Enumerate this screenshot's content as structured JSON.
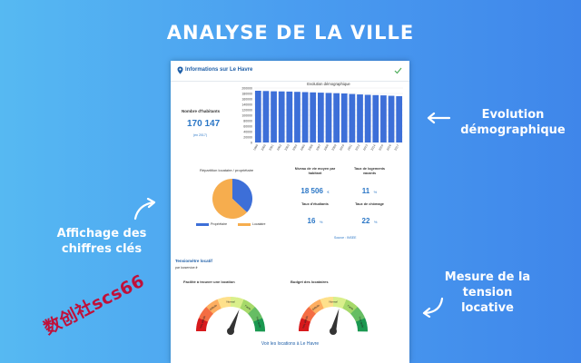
{
  "page": {
    "title": "ANALYSE DE LA VILLE"
  },
  "callouts": {
    "right_top": [
      "Evolution",
      "démographique"
    ],
    "left": [
      "Affichage des",
      "chiffres clés"
    ],
    "right_bottom": [
      "Mesure de la tension",
      "locative"
    ]
  },
  "card": {
    "header": {
      "label": "Informations sur Le Havre",
      "icon": "location-pin-icon",
      "check_icon": "check-icon"
    },
    "population": {
      "label": "Nombre d'habitants",
      "value": "170 147",
      "note": "(en 2017)"
    },
    "footer_link": "Voir les locations à Le Havre",
    "source": "Source : INSEE"
  },
  "chart_data": {
    "type": "bar",
    "title": "Evolution démographique",
    "categories": [
      "1999",
      "2000",
      "2001",
      "2002",
      "2003",
      "2004",
      "2005",
      "2006",
      "2007",
      "2008",
      "2009",
      "2010",
      "2011",
      "2012",
      "2013",
      "2014",
      "2015",
      "2016",
      "2017"
    ],
    "values": [
      190000,
      189000,
      188000,
      187500,
      187000,
      186000,
      185000,
      184000,
      183000,
      182000,
      181000,
      180000,
      178000,
      176500,
      175000,
      174000,
      173000,
      171500,
      170147
    ],
    "ylim": [
      0,
      200000
    ],
    "yticks": [
      "200000",
      "180000",
      "160000",
      "140000",
      "120000",
      "100000",
      "80000",
      "60000",
      "40000",
      "20000",
      "0"
    ],
    "color": "#3d6fd8"
  },
  "pie": {
    "title": "Répartition locataire / propriétaire",
    "slices": [
      {
        "name": "Propriétaire",
        "value": 37,
        "color": "#3d6fd8"
      },
      {
        "name": "Locataire",
        "value": 63,
        "color": "#f6ad4e"
      }
    ]
  },
  "stats": [
    {
      "label": "Niveau de vie moyen par habitant",
      "value": "18 506",
      "unit": "€"
    },
    {
      "label": "Taux de logements vacants",
      "value": "11",
      "unit": "%"
    },
    {
      "label": "Taux d'étudiants",
      "value": "16",
      "unit": "%"
    },
    {
      "label": "Taux de chômage",
      "value": "22",
      "unit": "%"
    }
  ],
  "tension": {
    "title": "Tensiomètre locatif",
    "subtitle": "par  locservice.fr",
    "gauges": [
      {
        "title": "Facilité à trouver une location",
        "needle_fraction": 0.62,
        "labels": [
          "Très difficile",
          "Difficile",
          "Normal",
          "Facile",
          "Très facile"
        ]
      },
      {
        "title": "Budget des locataires",
        "needle_fraction": 0.58,
        "labels": [
          "Très difficile",
          "Difficile",
          "Normal",
          "Facile",
          "Très facile"
        ]
      }
    ]
  },
  "watermark": "数创社scs66"
}
